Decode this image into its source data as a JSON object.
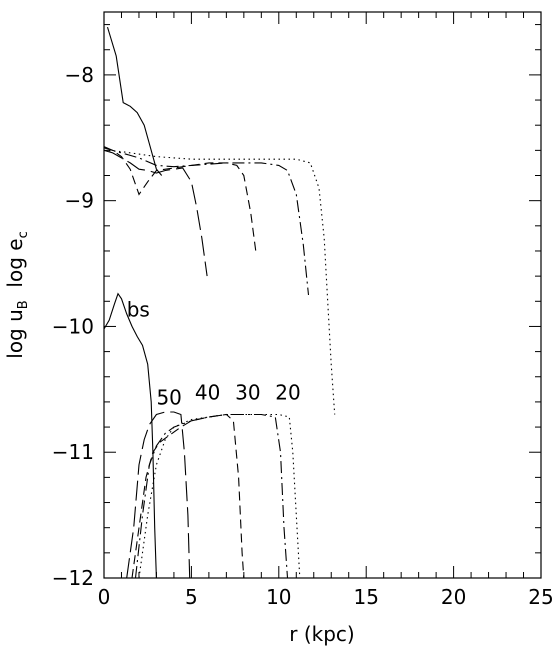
{
  "chart_data": {
    "type": "line",
    "title": "",
    "xlabel": "r (kpc)",
    "ylabel": "log u_B  log e_c",
    "xlim": [
      0,
      25
    ],
    "ylim": [
      -12,
      -7.5
    ],
    "xticks": [
      0,
      5,
      10,
      15,
      20,
      25
    ],
    "yticks": [
      -8,
      -9,
      -10,
      -11,
      -12
    ],
    "ylabel_parts": [
      {
        "text": "log u",
        "sub": "B"
      },
      {
        "text": "  log e",
        "sub": "c"
      }
    ],
    "annotations": [
      {
        "text": "bs",
        "x": 1.3,
        "y": -9.92
      },
      {
        "text": "50",
        "x": 3.0,
        "y": -10.62
      },
      {
        "text": "40",
        "x": 5.2,
        "y": -10.58
      },
      {
        "text": "30",
        "x": 7.5,
        "y": -10.58
      },
      {
        "text": "20",
        "x": 9.8,
        "y": -10.58
      }
    ],
    "series": [
      {
        "group": "upper",
        "style": "solid",
        "x": [
          0.2,
          0.7,
          1.1,
          1.5,
          1.9,
          2.3,
          2.7,
          3.0,
          3.3
        ],
        "y": [
          -7.62,
          -7.85,
          -8.22,
          -8.25,
          -8.3,
          -8.4,
          -8.6,
          -8.75,
          -8.8
        ]
      },
      {
        "group": "upper",
        "style": "long-dash",
        "x": [
          0.0,
          0.5,
          1.0,
          1.5,
          2.0,
          2.5,
          3.0,
          3.5,
          4.0,
          4.5,
          5.0,
          5.3,
          5.6,
          5.9
        ],
        "y": [
          -8.6,
          -8.62,
          -8.66,
          -8.7,
          -8.75,
          -8.76,
          -8.78,
          -8.76,
          -8.75,
          -8.74,
          -8.85,
          -9.05,
          -9.3,
          -9.6
        ]
      },
      {
        "group": "upper",
        "style": "short-dash",
        "x": [
          0.0,
          0.5,
          1.0,
          1.5,
          2.0,
          2.5,
          3.0,
          4.0,
          5.0,
          6.0,
          7.0,
          7.6,
          8.0,
          8.4,
          8.7
        ],
        "y": [
          -8.58,
          -8.6,
          -8.65,
          -8.75,
          -8.95,
          -8.85,
          -8.76,
          -8.74,
          -8.72,
          -8.7,
          -8.7,
          -8.72,
          -8.8,
          -9.1,
          -9.42
        ]
      },
      {
        "group": "upper",
        "style": "dash-dot",
        "x": [
          0.0,
          0.5,
          1.0,
          2.0,
          3.0,
          4.0,
          5.0,
          6.0,
          7.0,
          8.0,
          9.0,
          10.0,
          10.5,
          11.0,
          11.4,
          11.7
        ],
        "y": [
          -8.57,
          -8.6,
          -8.62,
          -8.66,
          -8.72,
          -8.73,
          -8.72,
          -8.71,
          -8.7,
          -8.7,
          -8.7,
          -8.72,
          -8.76,
          -8.95,
          -9.35,
          -9.75
        ]
      },
      {
        "group": "upper",
        "style": "dotted",
        "x": [
          0.0,
          1.0,
          2.0,
          3.0,
          4.0,
          5.0,
          6.0,
          7.0,
          8.0,
          9.0,
          10.0,
          11.0,
          11.8,
          12.3,
          12.6,
          12.8,
          13.0,
          13.2
        ],
        "y": [
          -8.6,
          -8.61,
          -8.63,
          -8.65,
          -8.66,
          -8.67,
          -8.67,
          -8.67,
          -8.67,
          -8.67,
          -8.67,
          -8.67,
          -8.7,
          -8.9,
          -9.3,
          -9.8,
          -10.3,
          -10.7
        ]
      },
      {
        "group": "lower",
        "style": "solid",
        "x": [
          0.0,
          0.3,
          0.6,
          0.8,
          1.0,
          1.3,
          1.6,
          1.9,
          2.2,
          2.5,
          2.7,
          2.8,
          2.9,
          3.0
        ],
        "y": [
          -10.02,
          -9.95,
          -9.82,
          -9.74,
          -9.78,
          -9.9,
          -10.0,
          -10.08,
          -10.15,
          -10.3,
          -10.6,
          -11.0,
          -11.6,
          -12.0
        ]
      },
      {
        "group": "lower",
        "style": "long-dash",
        "x": [
          1.3,
          1.7,
          2.0,
          2.3,
          2.6,
          3.0,
          3.5,
          4.0,
          4.4,
          4.6,
          4.8,
          4.9
        ],
        "y": [
          -12.0,
          -11.6,
          -11.1,
          -10.9,
          -10.78,
          -10.7,
          -10.68,
          -10.68,
          -10.7,
          -11.0,
          -11.5,
          -12.0
        ]
      },
      {
        "group": "lower",
        "style": "short-dash",
        "x": [
          1.6,
          2.0,
          2.4,
          2.8,
          3.2,
          3.8,
          4.4,
          5.0,
          6.0,
          7.0,
          7.4,
          7.7,
          7.9,
          8.0
        ],
        "y": [
          -12.0,
          -11.6,
          -11.2,
          -11.0,
          -10.92,
          -10.86,
          -10.8,
          -10.75,
          -10.72,
          -10.7,
          -10.75,
          -11.2,
          -11.8,
          -12.0
        ]
      },
      {
        "group": "lower",
        "style": "dash-dot",
        "x": [
          1.8,
          2.2,
          2.6,
          3.0,
          3.5,
          4.0,
          5.0,
          6.0,
          7.0,
          8.0,
          9.0,
          9.8,
          10.1,
          10.3,
          10.5
        ],
        "y": [
          -12.0,
          -11.5,
          -11.1,
          -10.95,
          -10.85,
          -10.8,
          -10.75,
          -10.72,
          -10.7,
          -10.7,
          -10.7,
          -10.72,
          -11.0,
          -11.6,
          -12.0
        ]
      },
      {
        "group": "lower",
        "style": "dotted",
        "x": [
          2.0,
          2.5,
          3.0,
          3.5,
          4.0,
          5.0,
          6.0,
          7.0,
          8.0,
          9.0,
          10.0,
          10.6,
          10.8,
          11.0,
          11.2
        ],
        "y": [
          -12.0,
          -11.5,
          -11.1,
          -10.9,
          -10.8,
          -10.74,
          -10.72,
          -10.7,
          -10.7,
          -10.7,
          -10.7,
          -10.72,
          -11.0,
          -11.5,
          -12.0
        ]
      }
    ]
  }
}
